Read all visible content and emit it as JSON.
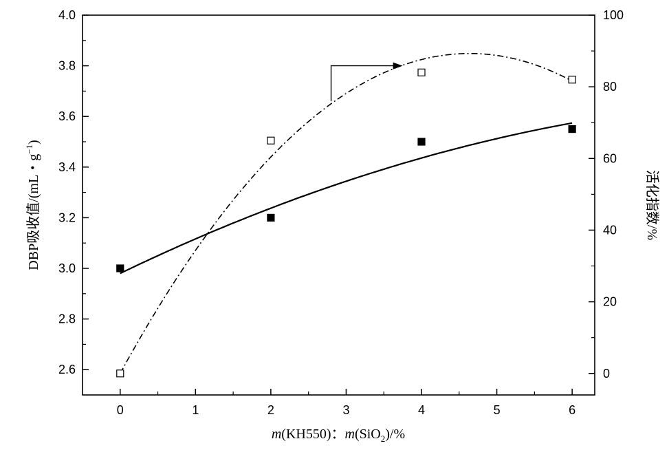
{
  "chart_data": {
    "type": "scatter",
    "xlabel_parts": {
      "m1": "m",
      "mid": "(KH550)：",
      "m2": "m",
      "sio": "(SiO",
      "sub": "2",
      "tail": ")/%"
    },
    "ylabel_left_parts": {
      "main": "DBP吸收值/(mL・g",
      "sup": "−1",
      "tail": ")"
    },
    "ylabel_right": "活化指数/%",
    "x_ticks": [
      "0",
      "1",
      "2",
      "3",
      "4",
      "5",
      "6"
    ],
    "y_left_ticks": [
      "2.6",
      "2.8",
      "3.0",
      "3.2",
      "3.4",
      "3.6",
      "3.8",
      "4.0"
    ],
    "y_right_ticks": [
      "0",
      "20",
      "40",
      "60",
      "80",
      "100"
    ],
    "xlim": [
      -0.5,
      6.3
    ],
    "ylim_left": [
      2.5,
      4.0
    ],
    "ylim_right": [
      -6,
      100
    ],
    "series": [
      {
        "axis": "left",
        "marker": "filled-square",
        "color": "#000000",
        "x": [
          0,
          2,
          4,
          6
        ],
        "y": [
          3.0,
          3.2,
          3.5,
          3.55
        ],
        "fit": "solid",
        "fit_coeffs": [
          2.98,
          0.1437,
          -0.00745
        ]
      },
      {
        "axis": "right",
        "marker": "open-square",
        "color": "#000000",
        "x": [
          0,
          2,
          4,
          6
        ],
        "y": [
          0,
          65,
          84,
          82
        ],
        "fit": "dash-dot",
        "fit_coeffs": [
          0,
          38.5,
          -4.15
        ]
      }
    ],
    "annotation_arrow": {
      "x_from": 2.8,
      "x_to": 3.75,
      "value_top": 3.8,
      "value_bottom": 3.66,
      "direction": "right"
    },
    "grid": false,
    "legend": "none"
  }
}
